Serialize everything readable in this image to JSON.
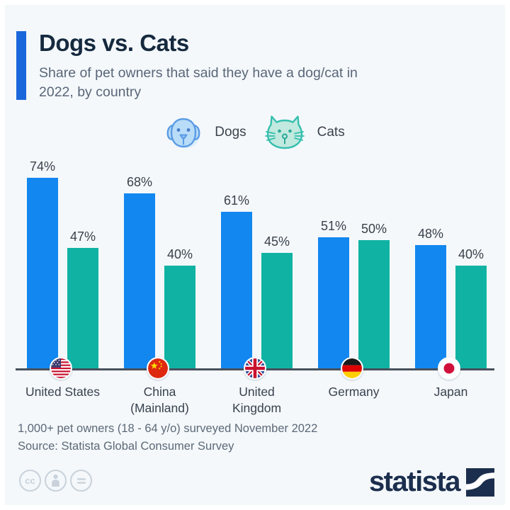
{
  "header": {
    "title": "Dogs vs. Cats",
    "subtitle": "Share of pet owners that said they have a dog/cat in 2022, by country"
  },
  "legend": [
    {
      "label": "Dogs",
      "icon": "dog-face-icon",
      "color": "#1287f0"
    },
    {
      "label": "Cats",
      "icon": "cat-face-icon",
      "color": "#10b3a3"
    }
  ],
  "chart_data": {
    "type": "bar",
    "title": "Dogs vs. Cats",
    "categories": [
      "United States",
      "China (Mainland)",
      "United Kingdom",
      "Germany",
      "Japan"
    ],
    "category_label_lines": [
      [
        "United States"
      ],
      [
        "China",
        "(Mainland)"
      ],
      [
        "United",
        "Kingdom"
      ],
      [
        "Germany"
      ],
      [
        "Japan"
      ]
    ],
    "series": [
      {
        "name": "Dogs",
        "color": "#1287f0",
        "values": [
          74,
          68,
          61,
          51,
          48
        ]
      },
      {
        "name": "Cats",
        "color": "#10b3a3",
        "values": [
          47,
          40,
          45,
          50,
          40
        ]
      }
    ],
    "unit": "%",
    "value_labels": "above-bars",
    "axes": "hidden",
    "ylim": [
      0,
      80
    ],
    "flag_keys": [
      "us",
      "cn",
      "gb",
      "de",
      "jp"
    ],
    "flag_names": [
      "us-flag",
      "china-flag",
      "uk-flag",
      "germany-flag",
      "japan-flag"
    ]
  },
  "footer": {
    "note": "1,000+ pet owners (18 - 64 y/o) surveyed November 2022",
    "source": "Source: Statista Global Consumer Survey"
  },
  "branding": {
    "logo_text": "statista",
    "license_icons": [
      "cc-icon",
      "attribution-icon",
      "no-derivatives-icon"
    ],
    "cc_label": "cc"
  },
  "colors": {
    "background": "#f4f8fb",
    "accent_bar": "#1a66db",
    "dogs_bar": "#1287f0",
    "cats_bar": "#10b3a3",
    "title_text": "#15293e",
    "subtitle_text": "#5a6678",
    "value_text": "#3a414b",
    "baseline": "#47515d",
    "statista_navy": "#1b2e4d"
  }
}
